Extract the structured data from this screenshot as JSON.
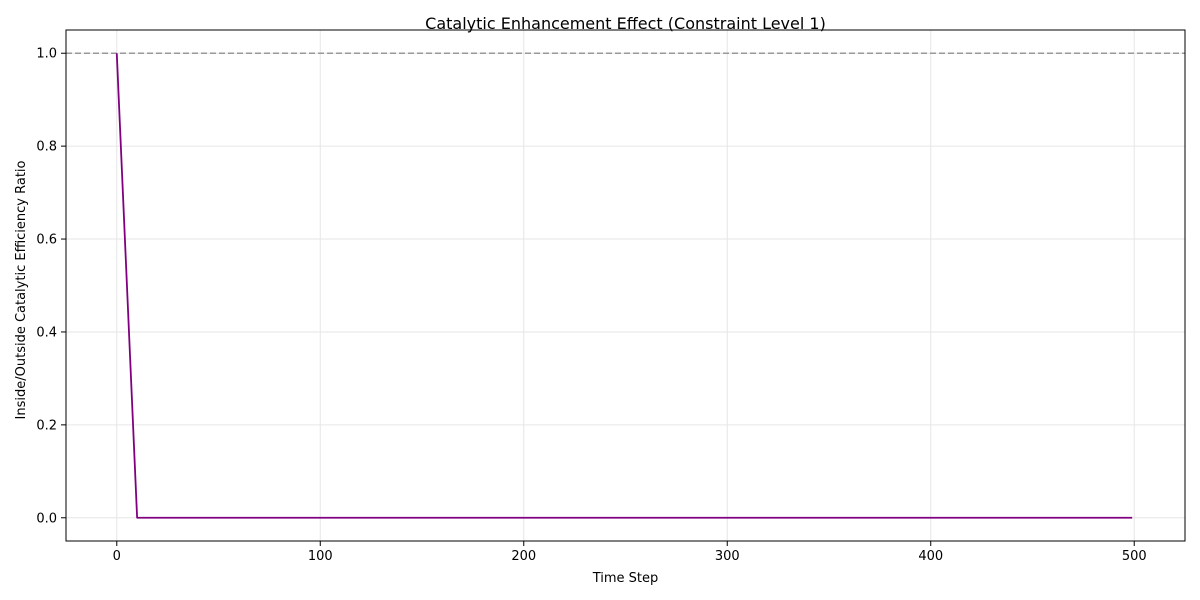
{
  "chart_data": {
    "type": "line",
    "title": "Catalytic Enhancement Effect (Constraint Level 1)",
    "xlabel": "Time Step",
    "ylabel": "Inside/Outside Catalytic Efficiency Ratio",
    "xlim": [
      -24.95,
      524.95
    ],
    "ylim": [
      -0.05,
      1.05
    ],
    "xticks": [
      0,
      100,
      200,
      300,
      400,
      500
    ],
    "xtick_labels": [
      "0",
      "100",
      "200",
      "300",
      "400",
      "500"
    ],
    "yticks": [
      0.0,
      0.2,
      0.4,
      0.6,
      0.8,
      1.0
    ],
    "ytick_labels": [
      "0.0",
      "0.2",
      "0.4",
      "0.6",
      "0.8",
      "1.0"
    ],
    "grid": true,
    "series": [
      {
        "x": [
          0,
          10,
          499
        ],
        "y": [
          1.0,
          0.0,
          0.0
        ],
        "color": "#800080"
      }
    ],
    "reference_lines": [
      {
        "orientation": "horizontal",
        "y": 1.0,
        "style": "dashed",
        "color": "#999999"
      }
    ]
  }
}
